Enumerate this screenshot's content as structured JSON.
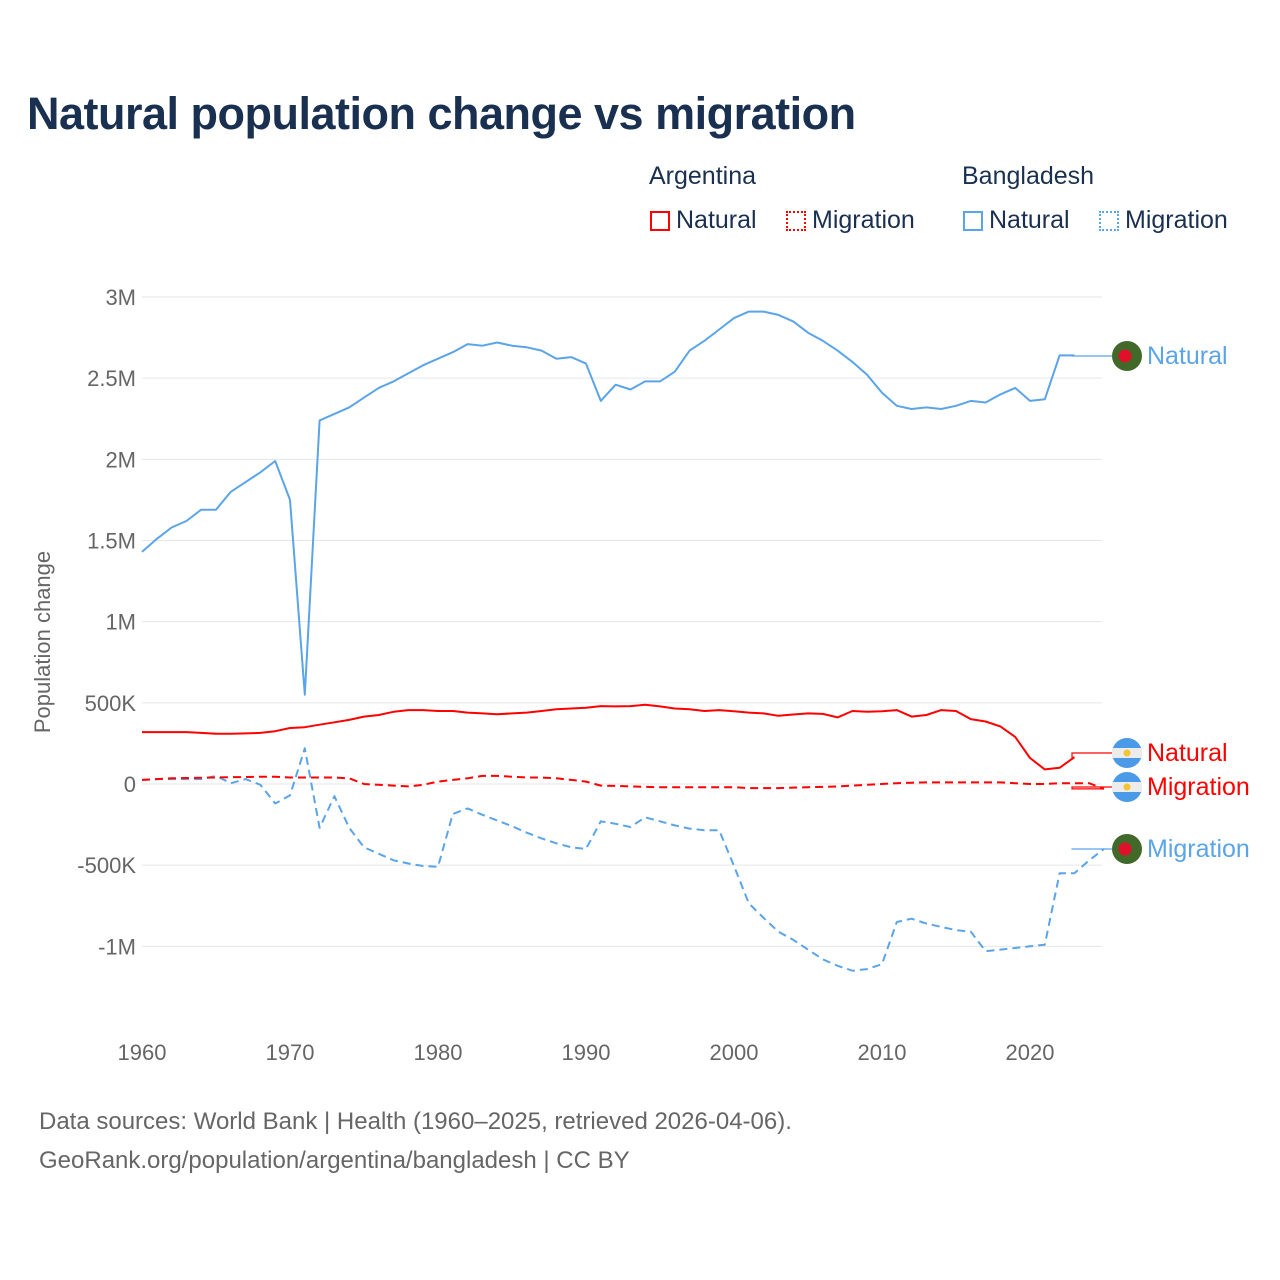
{
  "title": "Natural population change vs migration",
  "legend": {
    "groups": [
      {
        "name": "Argentina",
        "items": [
          {
            "label": "Natural",
            "style": "solid",
            "color": "#ff0000"
          },
          {
            "label": "Migration",
            "style": "dotted",
            "color": "#ff0000"
          }
        ]
      },
      {
        "name": "Bangladesh",
        "items": [
          {
            "label": "Natural",
            "style": "solid",
            "color": "#5ba4e8"
          },
          {
            "label": "Migration",
            "style": "dotted",
            "color": "#5ba4e8"
          }
        ]
      }
    ]
  },
  "footer": {
    "line1": "Data sources: World Bank | Health (1960–2025, retrieved 2026-04-06).",
    "line2": "GeoRank.org/population/argentina/bangladesh | CC BY"
  },
  "chart_data": {
    "type": "line",
    "title": "Natural population change vs migration",
    "xlabel": "",
    "ylabel": "Population change",
    "xlim": [
      1960,
      2025
    ],
    "ylim": [
      -1300000,
      3000000
    ],
    "x_ticks": [
      1960,
      1970,
      1980,
      1990,
      2000,
      2010,
      2020
    ],
    "y_ticks": [
      {
        "v": 3000000,
        "label": "3M"
      },
      {
        "v": 2500000,
        "label": "2.5M"
      },
      {
        "v": 2000000,
        "label": "2M"
      },
      {
        "v": 1500000,
        "label": "1.5M"
      },
      {
        "v": 1000000,
        "label": "1M"
      },
      {
        "v": 500000,
        "label": "500K"
      },
      {
        "v": 0,
        "label": "0"
      },
      {
        "v": -500000,
        "label": "-500K"
      },
      {
        "v": -1000000,
        "label": "-1M"
      }
    ],
    "grid": true,
    "legend_position": "top-right",
    "series": [
      {
        "name": "Bangladesh Natural",
        "end_label": "Natural",
        "country": "Bangladesh",
        "color": "#5ba4e8",
        "dash": "solid",
        "start": 1960,
        "values": [
          1430000,
          1510000,
          1580000,
          1620000,
          1690000,
          1690000,
          1800000,
          1860000,
          1920000,
          1990000,
          1750000,
          550000,
          2240000,
          2280000,
          2320000,
          2380000,
          2440000,
          2480000,
          2530000,
          2580000,
          2620000,
          2660000,
          2710000,
          2700000,
          2720000,
          2700000,
          2690000,
          2670000,
          2620000,
          2630000,
          2590000,
          2360000,
          2460000,
          2430000,
          2480000,
          2480000,
          2540000,
          2670000,
          2730000,
          2800000,
          2870000,
          2910000,
          2910000,
          2890000,
          2850000,
          2780000,
          2730000,
          2670000,
          2600000,
          2520000,
          2410000,
          2330000,
          2310000,
          2320000,
          2310000,
          2330000,
          2360000,
          2350000,
          2400000,
          2440000,
          2360000,
          2370000,
          2640000,
          2640000
        ]
      },
      {
        "name": "Bangladesh Migration",
        "end_label": "Migration",
        "country": "Bangladesh",
        "color": "#5ba4e8",
        "dash": "dashed",
        "start": 1960,
        "values": [
          25000,
          30000,
          30000,
          30000,
          30000,
          50000,
          5000,
          30000,
          -5000,
          -120000,
          -70000,
          220000,
          -270000,
          -75000,
          -270000,
          -390000,
          -430000,
          -470000,
          -490000,
          -505000,
          -510000,
          -185000,
          -150000,
          -190000,
          -225000,
          -260000,
          -300000,
          -335000,
          -365000,
          -390000,
          -400000,
          -230000,
          -245000,
          -265000,
          -205000,
          -230000,
          -255000,
          -275000,
          -285000,
          -285000,
          -505000,
          -735000,
          -825000,
          -910000,
          -960000,
          -1020000,
          -1080000,
          -1120000,
          -1150000,
          -1140000,
          -1110000,
          -850000,
          -830000,
          -860000,
          -880000,
          -900000,
          -910000,
          -1030000,
          -1020000,
          -1010000,
          -1000000,
          -990000,
          -550000,
          -550000,
          -470000,
          -400000
        ]
      },
      {
        "name": "Argentina Natural",
        "end_label": "Natural",
        "country": "Argentina",
        "color": "#ff0000",
        "dash": "solid",
        "start": 1960,
        "values": [
          320000,
          320000,
          320000,
          320000,
          315000,
          310000,
          310000,
          312000,
          315000,
          325000,
          345000,
          350000,
          365000,
          380000,
          395000,
          415000,
          425000,
          445000,
          455000,
          455000,
          450000,
          450000,
          440000,
          435000,
          430000,
          435000,
          440000,
          450000,
          460000,
          465000,
          470000,
          480000,
          478000,
          480000,
          488000,
          478000,
          465000,
          460000,
          450000,
          455000,
          448000,
          440000,
          435000,
          420000,
          428000,
          435000,
          432000,
          410000,
          450000,
          445000,
          448000,
          455000,
          415000,
          425000,
          455000,
          450000,
          400000,
          385000,
          355000,
          290000,
          160000,
          90000,
          100000,
          165000
        ]
      },
      {
        "name": "Argentina Migration",
        "end_label": "Migration",
        "country": "Argentina",
        "color": "#ff0000",
        "dash": "dashed",
        "start": 1960,
        "values": [
          25000,
          30000,
          35000,
          37000,
          38000,
          40000,
          42000,
          43000,
          45000,
          45000,
          40000,
          40000,
          40000,
          40000,
          35000,
          0,
          -5000,
          -10000,
          -15000,
          -5000,
          15000,
          25000,
          35000,
          50000,
          50000,
          45000,
          40000,
          40000,
          35000,
          25000,
          15000,
          -10000,
          -12000,
          -15000,
          -18000,
          -20000,
          -20000,
          -20000,
          -20000,
          -20000,
          -20000,
          -25000,
          -25000,
          -25000,
          -22000,
          -20000,
          -18000,
          -15000,
          -10000,
          -5000,
          0,
          5000,
          8000,
          10000,
          10000,
          10000,
          10000,
          10000,
          10000,
          5000,
          0,
          0,
          5000,
          5000,
          5000,
          -30000
        ]
      }
    ]
  }
}
